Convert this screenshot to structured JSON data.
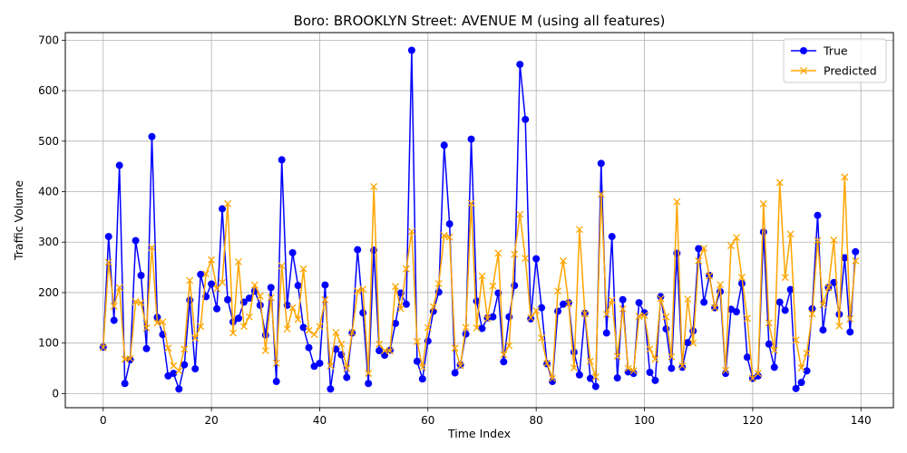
{
  "chart_data": {
    "type": "line",
    "title": "Boro: BROOKLYN Street: AVENUE M (using all features)",
    "xlabel": "Time Index",
    "ylabel": "Traffic Volume",
    "xlim": [
      -7,
      146
    ],
    "ylim": [
      -28,
      715
    ],
    "xticks": [
      0,
      20,
      40,
      60,
      80,
      100,
      120,
      140
    ],
    "yticks": [
      0,
      100,
      200,
      300,
      400,
      500,
      600,
      700
    ],
    "grid": true,
    "legend_position": "top-right",
    "series": [
      {
        "name": "True",
        "color": "#0000ff",
        "marker": "circle",
        "values": [
          92,
          311,
          145,
          452,
          20,
          67,
          303,
          234,
          89,
          509,
          151,
          117,
          35,
          40,
          9,
          57,
          185,
          49,
          236,
          192,
          217,
          168,
          366,
          186,
          142,
          149,
          181,
          189,
          203,
          175,
          116,
          210,
          24,
          463,
          175,
          279,
          214,
          131,
          91,
          54,
          60,
          215,
          9,
          88,
          77,
          32,
          120,
          285,
          160,
          20,
          284,
          85,
          76,
          86,
          139,
          199,
          177,
          680,
          64,
          29,
          104,
          163,
          201,
          492,
          336,
          41,
          57,
          118,
          504,
          183,
          129,
          150,
          152,
          199,
          63,
          152,
          214,
          652,
          543,
          148,
          267,
          170,
          59,
          24,
          163,
          177,
          180,
          82,
          37,
          159,
          30,
          14,
          456,
          120,
          311,
          31,
          186,
          43,
          40,
          180,
          160,
          42,
          26,
          192,
          128,
          50,
          278,
          52,
          101,
          124,
          287,
          181,
          234,
          170,
          202,
          40,
          167,
          162,
          218,
          72,
          30,
          35,
          320,
          98,
          52,
          181,
          165,
          206,
          10,
          22,
          45,
          168,
          353,
          126,
          210,
          220,
          157,
          269,
          122,
          281
        ]
      },
      {
        "name": "Predicted",
        "color": "#ffa500",
        "marker": "x",
        "values": [
          91,
          260,
          173,
          210,
          68,
          69,
          182,
          180,
          130,
          289,
          140,
          142,
          90,
          55,
          45,
          88,
          224,
          110,
          133,
          237,
          265,
          208,
          220,
          376,
          120,
          261,
          133,
          152,
          215,
          193,
          85,
          190,
          60,
          253,
          128,
          170,
          147,
          247,
          125,
          117,
          133,
          186,
          55,
          121,
          98,
          50,
          121,
          203,
          207,
          40,
          410,
          98,
          85,
          84,
          212,
          168,
          247,
          321,
          103,
          52,
          131,
          172,
          218,
          313,
          310,
          90,
          55,
          131,
          377,
          130,
          233,
          148,
          213,
          278,
          77,
          95,
          276,
          355,
          268,
          150,
          164,
          110,
          60,
          30,
          203,
          263,
          178,
          51,
          325,
          158,
          64,
          33,
          395,
          157,
          185,
          74,
          168,
          50,
          45,
          153,
          155,
          88,
          68,
          188,
          152,
          73,
          380,
          55,
          187,
          100,
          263,
          288,
          233,
          170,
          216,
          46,
          293,
          309,
          230,
          149,
          30,
          40,
          376,
          140,
          86,
          418,
          230,
          316,
          106,
          51,
          80,
          158,
          303,
          176,
          210,
          304,
          134,
          429,
          148,
          263
        ]
      }
    ]
  }
}
